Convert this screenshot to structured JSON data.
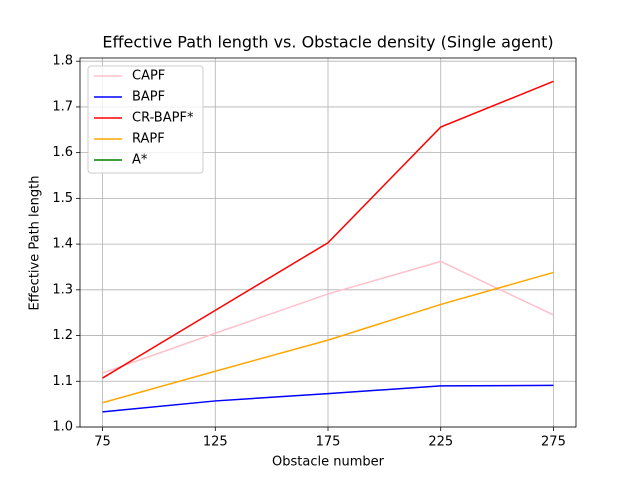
{
  "chart_data": {
    "type": "line",
    "title": "Effective Path length vs. Obstacle density (Single agent)",
    "x_label": "Obstacle number",
    "y_label": "Effective Path length",
    "x": [
      75,
      125,
      175,
      225,
      275
    ],
    "series": [
      {
        "name": "CAPF",
        "color": "#ffc0cb",
        "values": [
          1.118,
          1.205,
          1.291,
          1.362,
          1.245
        ]
      },
      {
        "name": "BAPF",
        "color": "#0000ff",
        "values": [
          1.033,
          1.057,
          1.073,
          1.09,
          1.091
        ]
      },
      {
        "name": "CR-BAPF*",
        "color": "#ff0000",
        "values": [
          1.107,
          1.255,
          1.403,
          1.656,
          1.756
        ]
      },
      {
        "name": "RAPF",
        "color": "#ffa500",
        "values": [
          1.053,
          1.122,
          1.19,
          1.268,
          1.338
        ]
      },
      {
        "name": "A*",
        "color": "#008000",
        "values": [
          null,
          null,
          null,
          null,
          null
        ]
      }
    ],
    "xlim": [
      65,
      285
    ],
    "xticks": [
      75,
      125,
      175,
      225,
      275
    ],
    "ylim": [
      1.0,
      1.807
    ],
    "yticks": [
      1.0,
      1.1,
      1.2,
      1.3,
      1.4,
      1.5,
      1.6,
      1.7,
      1.8
    ],
    "grid": true,
    "legend": "upper left"
  }
}
